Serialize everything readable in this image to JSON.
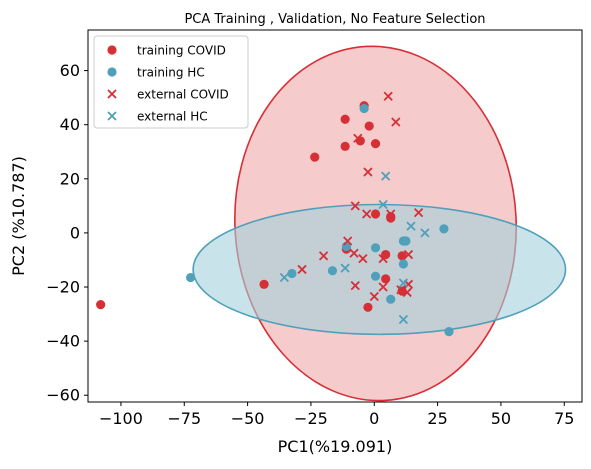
{
  "chart_data": {
    "type": "scatter",
    "title": "PCA Training , Validation, No Feature Selection",
    "xlabel": "PC1(%19.091)",
    "ylabel": "PC2 (%10.787)",
    "xlim": [
      -113,
      82
    ],
    "ylim": [
      -62.5,
      75
    ],
    "xticks": [
      -100,
      -75,
      -50,
      -25,
      0,
      25,
      50,
      75
    ],
    "yticks": [
      -60,
      -40,
      -20,
      0,
      20,
      40,
      60
    ],
    "xtick_labels": [
      "−100",
      "−75",
      "−50",
      "−25",
      "0",
      "25",
      "50",
      "75"
    ],
    "ytick_labels": [
      "−60",
      "−40",
      "−20",
      "0",
      "20",
      "40",
      "60"
    ],
    "grid": false,
    "legend_position": "top-left",
    "colors": {
      "covid": "#d62f36",
      "hc": "#4fa0ba",
      "covid_fill": "#f0a8a8",
      "hc_fill": "#a3d0dc"
    },
    "series": [
      {
        "name": "training COVID",
        "marker": "circle",
        "color": "#d62f36",
        "points": [
          [
            -108,
            -26.5
          ],
          [
            -23.5,
            28
          ],
          [
            -11.5,
            42
          ],
          [
            -11.5,
            32
          ],
          [
            -5.5,
            34
          ],
          [
            -4,
            47
          ],
          [
            -2,
            39.5
          ],
          [
            0.5,
            33
          ],
          [
            0.5,
            7
          ],
          [
            6.5,
            5.5
          ],
          [
            -11,
            -6
          ],
          [
            4.5,
            -8
          ],
          [
            11,
            -8.5
          ],
          [
            4.5,
            -17
          ],
          [
            11,
            -21.5
          ],
          [
            -43.5,
            -19
          ],
          [
            -2.5,
            -27.5
          ],
          [
            6.5,
            6
          ]
        ]
      },
      {
        "name": "training HC",
        "marker": "circle",
        "color": "#4fa0ba",
        "points": [
          [
            -72.5,
            -16.5
          ],
          [
            -32.5,
            -15
          ],
          [
            -16.5,
            -14
          ],
          [
            -11,
            -5
          ],
          [
            0.5,
            -5.5
          ],
          [
            0.5,
            -16
          ],
          [
            11.5,
            -3
          ],
          [
            12.5,
            -3
          ],
          [
            11.5,
            -11.5
          ],
          [
            6.5,
            -24.5
          ],
          [
            27.5,
            1.5
          ],
          [
            29.5,
            -36.5
          ],
          [
            -4,
            46
          ]
        ]
      },
      {
        "name": "external COVID",
        "marker": "x",
        "color": "#d62f36",
        "points": [
          [
            5.5,
            50.5
          ],
          [
            8.5,
            41
          ],
          [
            -6.5,
            35
          ],
          [
            -2.5,
            22.5
          ],
          [
            -7.5,
            10
          ],
          [
            -3,
            7
          ],
          [
            6.5,
            7
          ],
          [
            17.5,
            7.5
          ],
          [
            -10.5,
            -3
          ],
          [
            -8,
            -7.5
          ],
          [
            -4.5,
            -9.5
          ],
          [
            3.5,
            -9.5
          ],
          [
            13.5,
            -8
          ],
          [
            -20,
            -8.5
          ],
          [
            -28.5,
            -13.5
          ],
          [
            -7.5,
            -19.5
          ],
          [
            0,
            -23.5
          ],
          [
            3.5,
            -20
          ],
          [
            10.5,
            -21
          ],
          [
            13,
            -22
          ],
          [
            13.5,
            -19
          ]
        ]
      },
      {
        "name": "external HC",
        "marker": "x",
        "color": "#4fa0ba",
        "points": [
          [
            4.5,
            21
          ],
          [
            3.5,
            10.5
          ],
          [
            14.5,
            2.5
          ],
          [
            20,
            0
          ],
          [
            -11.5,
            -13
          ],
          [
            -35.5,
            -16.5
          ],
          [
            11.5,
            -18.5
          ],
          [
            11.5,
            -32
          ]
        ]
      }
    ],
    "ellipses": [
      {
        "group": "COVID",
        "cx": 0.5,
        "cy": 3.5,
        "rx": 55.5,
        "ry": 65.5,
        "angle_deg": 3,
        "color": "#d62f36",
        "fill": "#f0a8a8"
      },
      {
        "group": "HC",
        "cx": 2,
        "cy": -13.5,
        "rx": 73.5,
        "ry": 24,
        "angle_deg": 0,
        "color": "#4fa0ba",
        "fill": "#a3d0dc"
      }
    ]
  }
}
